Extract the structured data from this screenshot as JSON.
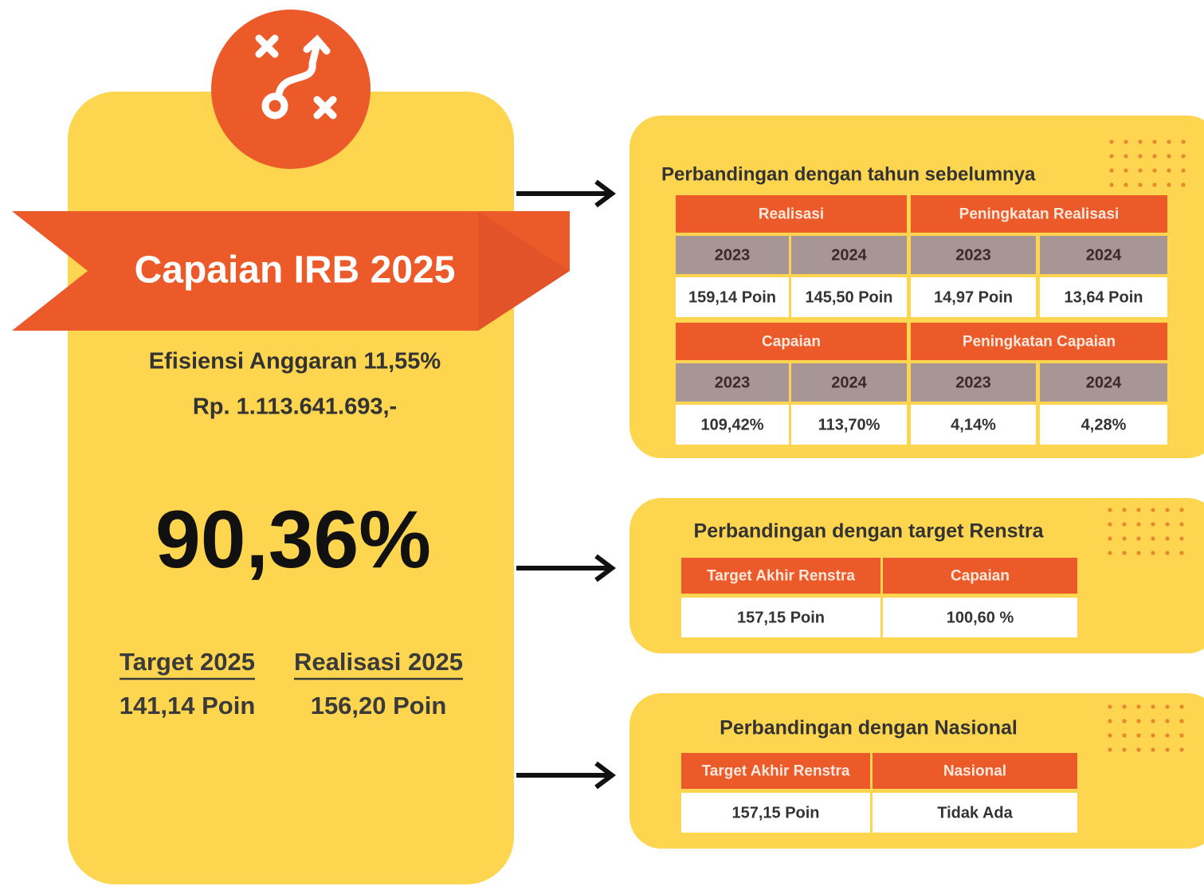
{
  "main": {
    "title": "Capaian IRB 2025",
    "efficiency": "Efisiensi Anggaran 11,55%",
    "amount": "Rp. 1.113.641.693,-",
    "score": "90,36%",
    "target_label": "Target 2025",
    "target_value": "141,14 Poin",
    "realization_label": "Realisasi 2025",
    "realization_value": "156,20 Poin"
  },
  "panels": [
    {
      "title": "Perbandingan dengan tahun sebelumnya",
      "blocks": [
        {
          "headers": [
            "Realisasi",
            "Peningkatan Realisasi"
          ],
          "years": [
            "2023",
            "2024",
            "2023",
            "2024"
          ],
          "values": [
            "159,14 Poin",
            "145,50 Poin",
            "14,97 Poin",
            "13,64 Poin"
          ]
        },
        {
          "headers": [
            "Capaian",
            "Peningkatan Capaian"
          ],
          "years": [
            "2023",
            "2024",
            "2023",
            "2024"
          ],
          "values": [
            "109,42%",
            "113,70%",
            "4,14%",
            "4,28%"
          ]
        }
      ]
    },
    {
      "title": "Perbandingan dengan target Renstra",
      "headers": [
        "Target Akhir Renstra",
        "Capaian"
      ],
      "values": [
        "157,15 Poin",
        "100,60 %"
      ]
    },
    {
      "title": "Perbandingan dengan Nasional",
      "headers": [
        "Target Akhir Renstra",
        "Nasional"
      ],
      "values": [
        "157,15 Poin",
        "Tidak Ada"
      ]
    }
  ]
}
